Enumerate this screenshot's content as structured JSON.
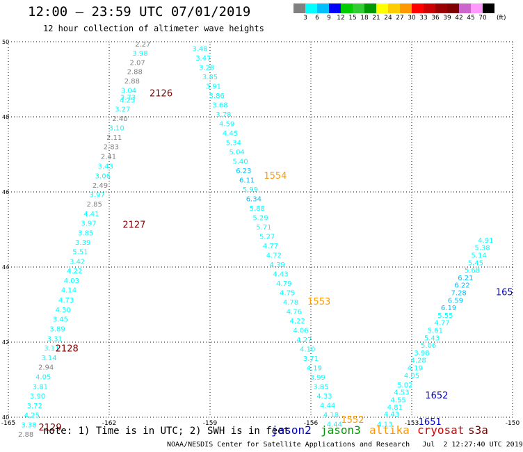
{
  "header": {
    "title": "12:00 – 23:59 UTC 07/01/2019",
    "subtitle": "12 hour collection of altimeter wave heights"
  },
  "legend": {
    "colors": [
      "#808080",
      "#00ffff",
      "#00bfff",
      "#0000ff",
      "#00cc00",
      "#33cc33",
      "#009900",
      "#ffff00",
      "#ffcc00",
      "#ff9900",
      "#ff0000",
      "#cc0000",
      "#990000",
      "#800000",
      "#cc66cc",
      "#ff99ff",
      "#000000"
    ],
    "labels": [
      "3",
      "6",
      "9",
      "12",
      "15",
      "18",
      "21",
      "24",
      "27",
      "30",
      "33",
      "36",
      "39",
      "42",
      "45",
      "70"
    ],
    "unit": "(ft)"
  },
  "footer": {
    "note": "note: 1) Time is in UTC; 2) SWH is in feet",
    "credit": "NOAA/NESDIS Center for Satellite Applications and Research   Jul  2 12:27:40 UTC 2019"
  },
  "satellites": [
    {
      "name": "jason2",
      "color": "#0000cc"
    },
    {
      "name": "jason3",
      "color": "#009900"
    },
    {
      "name": "altika",
      "color": "#ff9900"
    },
    {
      "name": "cryosat",
      "color": "#cc0000"
    },
    {
      "name": "s3a",
      "color": "#800000"
    }
  ],
  "chart_data": {
    "type": "scatter",
    "xlim": [
      -165,
      -150
    ],
    "ylim": [
      40,
      50
    ],
    "x_ticks": [
      "-165",
      "-162",
      "-159",
      "-156",
      "-153",
      "-150"
    ],
    "y_ticks": [
      "40",
      "42",
      "44",
      "46",
      "48",
      "50"
    ],
    "grid": true,
    "tracks": [
      {
        "id": "track-a",
        "points": [
          {
            "lon": -161.0,
            "lat": 49.87,
            "v": "2.27",
            "c": "#808080"
          },
          {
            "lon": -161.08,
            "lat": 49.63,
            "v": "3.98",
            "c": "#00ffff"
          },
          {
            "lon": -161.16,
            "lat": 49.38,
            "v": "2.07",
            "c": "#808080"
          },
          {
            "lon": -161.24,
            "lat": 49.14,
            "v": "2.88",
            "c": "#808080"
          },
          {
            "lon": -161.32,
            "lat": 48.89,
            "v": "2.88",
            "c": "#808080"
          },
          {
            "lon": -161.42,
            "lat": 48.64,
            "v": "3.04",
            "c": "#00ffff"
          },
          {
            "lon": -161.44,
            "lat": 48.45,
            "v": "3.73",
            "c": "#00ffff"
          },
          {
            "lon": -161.46,
            "lat": 48.38,
            "v": "4.25",
            "c": "#00ffff"
          },
          {
            "lon": -161.6,
            "lat": 48.14,
            "v": "3.27",
            "c": "#00ffff"
          },
          {
            "lon": -161.68,
            "lat": 47.89,
            "v": "2.40",
            "c": "#808080"
          },
          {
            "lon": -161.78,
            "lat": 47.64,
            "v": "3.10",
            "c": "#00ffff"
          },
          {
            "lon": -161.85,
            "lat": 47.39,
            "v": "2.11",
            "c": "#808080"
          },
          {
            "lon": -161.94,
            "lat": 47.14,
            "v": "2.83",
            "c": "#808080"
          },
          {
            "lon": -162.02,
            "lat": 46.88,
            "v": "2.41",
            "c": "#808080"
          },
          {
            "lon": -162.11,
            "lat": 46.62,
            "v": "3.43",
            "c": "#00ffff"
          },
          {
            "lon": -162.19,
            "lat": 46.36,
            "v": "3.06",
            "c": "#00ffff"
          },
          {
            "lon": -162.27,
            "lat": 46.11,
            "v": "2.49",
            "c": "#808080"
          },
          {
            "lon": -162.36,
            "lat": 45.86,
            "v": "3.97",
            "c": "#00ffff"
          },
          {
            "lon": -162.44,
            "lat": 45.61,
            "v": "2.85",
            "c": "#808080"
          },
          {
            "lon": -162.53,
            "lat": 45.35,
            "v": "4.41",
            "c": "#00ffff"
          },
          {
            "lon": -162.61,
            "lat": 45.1,
            "v": "3.97",
            "c": "#00ffff"
          },
          {
            "lon": -162.7,
            "lat": 44.84,
            "v": "3.85",
            "c": "#00ffff"
          },
          {
            "lon": -162.78,
            "lat": 44.59,
            "v": "3.39",
            "c": "#00ffff"
          },
          {
            "lon": -162.86,
            "lat": 44.34,
            "v": "5.51",
            "c": "#00ffff"
          },
          {
            "lon": -162.95,
            "lat": 44.08,
            "v": "3.42",
            "c": "#00ffff"
          },
          {
            "lon": -163.03,
            "lat": 43.83,
            "v": "4.22",
            "c": "#00ffff"
          },
          {
            "lon": -163.12,
            "lat": 43.57,
            "v": "4.03",
            "c": "#00ffff"
          },
          {
            "lon": -163.2,
            "lat": 43.32,
            "v": "4.14",
            "c": "#00ffff"
          },
          {
            "lon": -163.28,
            "lat": 43.06,
            "v": "4.73",
            "c": "#00ffff"
          },
          {
            "lon": -163.37,
            "lat": 42.8,
            "v": "4.30",
            "c": "#00ffff"
          },
          {
            "lon": -163.45,
            "lat": 42.55,
            "v": "3.45",
            "c": "#00ffff"
          },
          {
            "lon": -163.54,
            "lat": 42.29,
            "v": "3.89",
            "c": "#00ffff"
          },
          {
            "lon": -163.62,
            "lat": 42.03,
            "v": "3.31",
            "c": "#00ffff"
          },
          {
            "lon": -163.71,
            "lat": 41.78,
            "v": "3.11",
            "c": "#00ffff"
          },
          {
            "lon": -163.79,
            "lat": 41.52,
            "v": "3.14",
            "c": "#00ffff"
          },
          {
            "lon": -163.88,
            "lat": 41.27,
            "v": "2.94",
            "c": "#808080"
          },
          {
            "lon": -163.96,
            "lat": 41.01,
            "v": "4.05",
            "c": "#00ffff"
          },
          {
            "lon": -164.05,
            "lat": 40.75,
            "v": "3.81",
            "c": "#00ffff"
          },
          {
            "lon": -164.13,
            "lat": 40.5,
            "v": "3.90",
            "c": "#00ffff"
          },
          {
            "lon": -164.22,
            "lat": 40.24,
            "v": "3.72",
            "c": "#00ffff"
          },
          {
            "lon": -164.3,
            "lat": 39.99,
            "v": "4.25",
            "c": "#00ffff"
          },
          {
            "lon": -164.39,
            "lat": 39.73,
            "v": "3.38",
            "c": "#00ffff"
          },
          {
            "lon": -164.48,
            "lat": 39.48,
            "v": "2.88",
            "c": "#808080"
          }
        ]
      },
      {
        "id": "track-b",
        "points": [
          {
            "lon": -159.3,
            "lat": 49.75,
            "v": "3.48",
            "c": "#00ffff"
          },
          {
            "lon": -159.2,
            "lat": 49.5,
            "v": "3.47",
            "c": "#00ffff"
          },
          {
            "lon": -159.1,
            "lat": 49.25,
            "v": "3.28",
            "c": "#00ffff"
          },
          {
            "lon": -159.0,
            "lat": 49.0,
            "v": "3.85",
            "c": "#00ffff"
          },
          {
            "lon": -158.9,
            "lat": 48.75,
            "v": "3.91",
            "c": "#00ffff"
          },
          {
            "lon": -158.8,
            "lat": 48.5,
            "v": "3.86",
            "c": "#00ffff"
          },
          {
            "lon": -158.7,
            "lat": 48.25,
            "v": "3.68",
            "c": "#00ffff"
          },
          {
            "lon": -158.6,
            "lat": 48.0,
            "v": "3.78",
            "c": "#00ffff"
          },
          {
            "lon": -158.5,
            "lat": 47.75,
            "v": "4.59",
            "c": "#00ffff"
          },
          {
            "lon": -158.4,
            "lat": 47.5,
            "v": "4.45",
            "c": "#00ffff"
          },
          {
            "lon": -158.3,
            "lat": 47.25,
            "v": "5.34",
            "c": "#00ffff"
          },
          {
            "lon": -158.2,
            "lat": 47.0,
            "v": "5.04",
            "c": "#00ffff"
          },
          {
            "lon": -158.1,
            "lat": 46.75,
            "v": "5.40",
            "c": "#00ffff"
          },
          {
            "lon": -158.0,
            "lat": 46.5,
            "v": "6.23",
            "c": "#00bfff"
          },
          {
            "lon": -157.9,
            "lat": 46.25,
            "v": "6.11",
            "c": "#00bfff"
          },
          {
            "lon": -157.8,
            "lat": 46.0,
            "v": "5.99",
            "c": "#00ffff"
          },
          {
            "lon": -157.7,
            "lat": 45.75,
            "v": "6.34",
            "c": "#00bfff"
          },
          {
            "lon": -157.6,
            "lat": 45.5,
            "v": "5.88",
            "c": "#00ffff"
          },
          {
            "lon": -157.5,
            "lat": 45.25,
            "v": "5.29",
            "c": "#00ffff"
          },
          {
            "lon": -157.4,
            "lat": 45.0,
            "v": "5.71",
            "c": "#00ffff"
          },
          {
            "lon": -157.3,
            "lat": 44.75,
            "v": "5.27",
            "c": "#00ffff"
          },
          {
            "lon": -157.2,
            "lat": 44.5,
            "v": "4.77",
            "c": "#00ffff"
          },
          {
            "lon": -157.1,
            "lat": 44.25,
            "v": "4.72",
            "c": "#00ffff"
          },
          {
            "lon": -157.0,
            "lat": 44.0,
            "v": "4.39",
            "c": "#00ffff"
          },
          {
            "lon": -156.9,
            "lat": 43.75,
            "v": "4.43",
            "c": "#00ffff"
          },
          {
            "lon": -156.8,
            "lat": 43.5,
            "v": "4.79",
            "c": "#00ffff"
          },
          {
            "lon": -156.7,
            "lat": 43.25,
            "v": "4.75",
            "c": "#00ffff"
          },
          {
            "lon": -156.6,
            "lat": 43.0,
            "v": "4.78",
            "c": "#00ffff"
          },
          {
            "lon": -156.5,
            "lat": 42.75,
            "v": "4.76",
            "c": "#00ffff"
          },
          {
            "lon": -156.4,
            "lat": 42.5,
            "v": "4.22",
            "c": "#00ffff"
          },
          {
            "lon": -156.3,
            "lat": 42.25,
            "v": "4.06",
            "c": "#00ffff"
          },
          {
            "lon": -156.2,
            "lat": 42.0,
            "v": "4.27",
            "c": "#00ffff"
          },
          {
            "lon": -156.1,
            "lat": 41.75,
            "v": "4.10",
            "c": "#00ffff"
          },
          {
            "lon": -156.0,
            "lat": 41.5,
            "v": "3.71",
            "c": "#00ffff"
          },
          {
            "lon": -155.9,
            "lat": 41.25,
            "v": "4.19",
            "c": "#00ffff"
          },
          {
            "lon": -155.8,
            "lat": 41.0,
            "v": "3.99",
            "c": "#00ffff"
          },
          {
            "lon": -155.7,
            "lat": 40.75,
            "v": "3.85",
            "c": "#00ffff"
          },
          {
            "lon": -155.6,
            "lat": 40.5,
            "v": "4.33",
            "c": "#00ffff"
          },
          {
            "lon": -155.5,
            "lat": 40.25,
            "v": "4.44",
            "c": "#00ffff"
          },
          {
            "lon": -155.4,
            "lat": 40.0,
            "v": "4.18",
            "c": "#00ffff"
          },
          {
            "lon": -155.3,
            "lat": 39.75,
            "v": "4.44",
            "c": "#00ffff"
          }
        ]
      },
      {
        "id": "track-c",
        "points": [
          {
            "lon": -153.8,
            "lat": 39.75,
            "v": "4.13",
            "c": "#00ffff"
          },
          {
            "lon": -153.6,
            "lat": 40.02,
            "v": "4.43",
            "c": "#00ffff"
          },
          {
            "lon": -153.5,
            "lat": 40.2,
            "v": "4.81",
            "c": "#00ffff"
          },
          {
            "lon": -153.4,
            "lat": 40.4,
            "v": "4.55",
            "c": "#00ffff"
          },
          {
            "lon": -153.3,
            "lat": 40.6,
            "v": "4.53",
            "c": "#00ffff"
          },
          {
            "lon": -153.2,
            "lat": 40.8,
            "v": "5.02",
            "c": "#00ffff"
          },
          {
            "lon": -153.0,
            "lat": 41.05,
            "v": "4.05",
            "c": "#00ffff"
          },
          {
            "lon": -152.9,
            "lat": 41.25,
            "v": "4.19",
            "c": "#00ffff"
          },
          {
            "lon": -152.8,
            "lat": 41.45,
            "v": "4.28",
            "c": "#00ffff"
          },
          {
            "lon": -152.7,
            "lat": 41.65,
            "v": "3.98",
            "c": "#00ffff"
          },
          {
            "lon": -152.5,
            "lat": 41.85,
            "v": "5.06",
            "c": "#00ffff"
          },
          {
            "lon": -152.4,
            "lat": 42.05,
            "v": "5.43",
            "c": "#00ffff"
          },
          {
            "lon": -152.3,
            "lat": 42.25,
            "v": "5.61",
            "c": "#00ffff"
          },
          {
            "lon": -152.1,
            "lat": 42.45,
            "v": "4.77",
            "c": "#00ffff"
          },
          {
            "lon": -152.0,
            "lat": 42.65,
            "v": "5.55",
            "c": "#00ffff"
          },
          {
            "lon": -151.9,
            "lat": 42.85,
            "v": "6.19",
            "c": "#00bfff"
          },
          {
            "lon": -151.7,
            "lat": 43.05,
            "v": "6.59",
            "c": "#00bfff"
          },
          {
            "lon": -151.6,
            "lat": 43.25,
            "v": "7.28",
            "c": "#00bfff"
          },
          {
            "lon": -151.5,
            "lat": 43.45,
            "v": "6.22",
            "c": "#00bfff"
          },
          {
            "lon": -151.4,
            "lat": 43.65,
            "v": "6.21",
            "c": "#00bfff"
          },
          {
            "lon": -151.2,
            "lat": 43.85,
            "v": "5.68",
            "c": "#00ffff"
          },
          {
            "lon": -151.1,
            "lat": 44.05,
            "v": "5.45",
            "c": "#00ffff"
          },
          {
            "lon": -151.0,
            "lat": 44.25,
            "v": "5.14",
            "c": "#00ffff"
          },
          {
            "lon": -150.9,
            "lat": 44.45,
            "v": "5.38",
            "c": "#00ffff"
          },
          {
            "lon": -150.8,
            "lat": 44.65,
            "v": "4.91",
            "c": "#00ffff"
          }
        ]
      }
    ],
    "labels": [
      {
        "text": "2126",
        "lon": -160.8,
        "lat": 48.55,
        "color": "#800000"
      },
      {
        "text": "2127",
        "lon": -161.6,
        "lat": 45.05,
        "color": "#800000"
      },
      {
        "text": "2128",
        "lon": -163.6,
        "lat": 41.75,
        "color": "#800000"
      },
      {
        "text": "2129",
        "lon": -164.1,
        "lat": 39.65,
        "color": "#800000"
      },
      {
        "text": "1554",
        "lon": -157.4,
        "lat": 46.35,
        "color": "#ff9900"
      },
      {
        "text": "1553",
        "lon": -156.1,
        "lat": 43.0,
        "color": "#ff9900"
      },
      {
        "text": "1552",
        "lon": -155.1,
        "lat": 39.85,
        "color": "#ff9900"
      },
      {
        "text": "1652",
        "lon": -152.6,
        "lat": 40.5,
        "color": "#0000cc"
      },
      {
        "text": "1651",
        "lon": -152.8,
        "lat": 39.8,
        "color": "#0000cc"
      },
      {
        "text": "165",
        "lon": -150.5,
        "lat": 43.25,
        "color": "#0000cc"
      }
    ]
  }
}
